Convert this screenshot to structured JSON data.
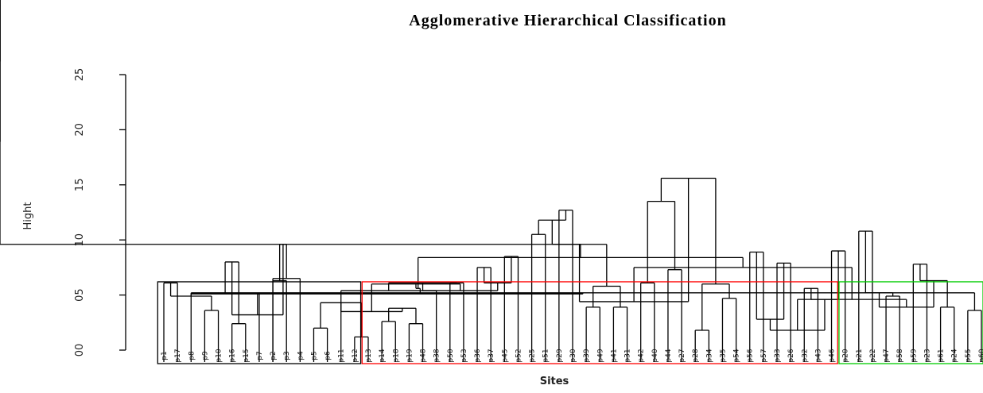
{
  "chart_data": {
    "type": "dendrogram",
    "title": "Agglomerative Hierarchical Classification",
    "xlabel": "Sites",
    "ylabel": "Hight",
    "ylim": [
      0,
      26
    ],
    "yticks": [
      0,
      5,
      10,
      15,
      20,
      25
    ],
    "ytick_labels": [
      "00",
      "05",
      "10",
      "15",
      "20",
      "25"
    ],
    "root_height": 26.2,
    "leaves": [
      "p1",
      "p17",
      "p8",
      "p9",
      "p10",
      "p16",
      "p15",
      "p7",
      "p2",
      "p3",
      "p4",
      "p5",
      "p6",
      "p11",
      "p12",
      "p13",
      "p14",
      "p18",
      "p19",
      "p48",
      "p38",
      "p50",
      "p53",
      "p36",
      "p37",
      "p45",
      "p52",
      "p25",
      "p51",
      "p29",
      "p30",
      "p39",
      "p49",
      "p41",
      "p31",
      "p42",
      "p40",
      "p44",
      "p27",
      "p28",
      "p34",
      "p35",
      "p54",
      "p56",
      "p57",
      "p33",
      "p26",
      "p32",
      "p43",
      "p46",
      "p20",
      "p21",
      "p22",
      "p47",
      "p58",
      "p59",
      "p23",
      "p61",
      "p24",
      "p55",
      "p60"
    ],
    "cut_height": 6.2,
    "clusters": [
      {
        "color": "#000000",
        "first_leaf": 0,
        "last_leaf": 14
      },
      {
        "color": "#ff0000",
        "first_leaf": 15,
        "last_leaf": 49
      },
      {
        "color": "#00cc00",
        "first_leaf": 50,
        "last_leaf": 60
      }
    ],
    "merges": [
      {
        "a": 0,
        "b": 1,
        "h": 6.1
      },
      {
        "a": 3,
        "b": 4,
        "h": 3.6
      },
      {
        "a": 5,
        "b": 6,
        "h": 2.4
      },
      {
        "a": 2,
        "b": 7,
        "h": 5.1
      },
      {
        "a": 8,
        "b": 9,
        "h": 6.3
      },
      {
        "a": 8,
        "b": 10,
        "h": 6.5
      },
      {
        "a": 11,
        "b": 12,
        "h": 2.0
      },
      {
        "a": 14,
        "b": 15,
        "h": 1.2
      },
      {
        "a": 16,
        "b": 17,
        "h": 2.6
      },
      {
        "a": 18,
        "b": 19,
        "h": 2.4
      },
      {
        "a": 13,
        "b": 20,
        "h": 5.4
      },
      {
        "a": 21,
        "b": 22,
        "h": 6.1
      },
      {
        "a": 23,
        "b": 24,
        "h": 7.5
      },
      {
        "a": 25,
        "b": 26,
        "h": 8.5
      },
      {
        "a": 27,
        "b": 28,
        "h": 10.5
      },
      {
        "a": 29,
        "b": 30,
        "h": 12.7
      },
      {
        "a": 31,
        "b": 32,
        "h": 3.9
      },
      {
        "a": 33,
        "b": 34,
        "h": 3.9
      },
      {
        "a": 35,
        "b": 36,
        "h": 6.1
      },
      {
        "a": 37,
        "b": 38,
        "h": 7.3
      },
      {
        "a": 39,
        "b": 40,
        "h": 1.8
      },
      {
        "a": 41,
        "b": 42,
        "h": 4.7
      },
      {
        "a": 43,
        "b": 44,
        "h": 8.9
      },
      {
        "a": 45,
        "b": 46,
        "h": 7.9
      },
      {
        "a": 47,
        "b": 48,
        "h": 5.6
      },
      {
        "a": 49,
        "b": 50,
        "h": 9.0
      },
      {
        "a": 51,
        "b": 52,
        "h": 10.8
      },
      {
        "a": 53,
        "b": 54,
        "h": 4.9
      },
      {
        "a": 55,
        "b": 56,
        "h": 7.8
      },
      {
        "a": 57,
        "b": 58,
        "h": 3.9
      },
      {
        "a": 59,
        "b": 60,
        "h": 3.6
      },
      {
        "a": 61,
        "b": 62,
        "h": 4.9
      },
      {
        "a": 63,
        "b": 64,
        "h": 8.0
      },
      {
        "a": 65,
        "b": 66,
        "h": 9.6
      },
      {
        "a": 67,
        "b": 68,
        "h": 4.3
      },
      {
        "a": 69,
        "b": 70,
        "h": 3.8
      },
      {
        "a": 71,
        "b": 72,
        "h": 6.1
      },
      {
        "a": 73,
        "b": 74,
        "h": 6.1
      },
      {
        "a": 75,
        "b": 76,
        "h": 11.8
      },
      {
        "a": 77,
        "b": 78,
        "h": 5.8
      },
      {
        "a": 79,
        "b": 80,
        "h": 13.5
      },
      {
        "a": 81,
        "b": 82,
        "h": 6.0
      },
      {
        "a": 83,
        "b": 84,
        "h": 2.8
      },
      {
        "a": 85,
        "b": 86,
        "h": 4.6
      },
      {
        "a": 87,
        "b": 88,
        "h": 5.2
      },
      {
        "a": 89,
        "b": 90,
        "h": 6.3
      },
      {
        "a": 91,
        "b": 92,
        "h": 5.2
      },
      {
        "a": 93,
        "b": 94,
        "h": 3.2
      },
      {
        "a": 95,
        "b": 96,
        "h": 3.5
      },
      {
        "a": 97,
        "b": 98,
        "h": 5.4
      },
      {
        "a": 99,
        "b": 100,
        "h": 9.6
      },
      {
        "a": 101,
        "b": 102,
        "h": 15.6
      },
      {
        "a": 103,
        "b": 104,
        "h": 1.8
      },
      {
        "a": 105,
        "b": 106,
        "h": 3.9
      },
      {
        "a": 107,
        "b": 108,
        "h": 5.1
      },
      {
        "a": 109,
        "b": 110,
        "h": 6.0
      },
      {
        "a": 111,
        "b": 112,
        "h": 4.4
      },
      {
        "a": 113,
        "b": 114,
        "h": 4.6
      },
      {
        "a": 115,
        "b": 116,
        "h": 5.6
      },
      {
        "a": 117,
        "b": 118,
        "h": 7.5
      },
      {
        "a": 119,
        "b": 120,
        "h": 8.4
      },
      {
        "a": 121,
        "b": 122,
        "h": 9.6
      },
      {
        "a": 123,
        "b": 124,
        "h": 18.9
      },
      {
        "a": 125,
        "b": 126,
        "h": 26.2
      }
    ]
  },
  "leaf_nodes_note_free": true
}
